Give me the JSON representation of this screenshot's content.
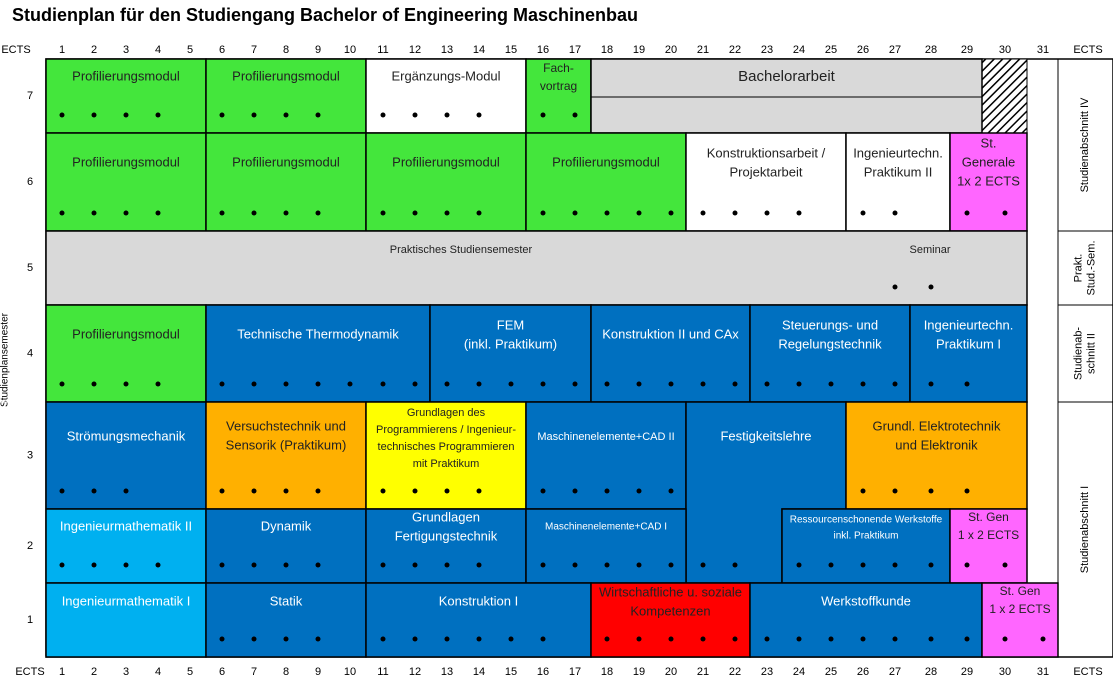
{
  "title": "Studienplan für den Studiengang Bachelor of Engineering Maschinenbau",
  "ects_label": "ECTS",
  "columns": [
    1,
    2,
    3,
    4,
    5,
    6,
    7,
    8,
    9,
    10,
    11,
    12,
    13,
    14,
    15,
    16,
    17,
    18,
    19,
    20,
    21,
    22,
    23,
    24,
    25,
    26,
    27,
    28,
    29,
    30,
    31
  ],
  "row_axis_label": "Studienplansemester",
  "semesters": [
    7,
    6,
    5,
    4,
    3,
    2,
    1
  ],
  "sections": [
    [
      "Studienabschnitt IV"
    ],
    [
      "Prakt.",
      "Stud.-Sem."
    ],
    [
      "Studienab-",
      "schnitt II"
    ],
    [
      "Studienabschnitt I"
    ]
  ],
  "modules": [
    {
      "label": [
        "Profilierungsmodul"
      ]
    },
    {
      "label": [
        "Profilierungsmodul"
      ]
    },
    {
      "label": [
        "Ergänzungs-Modul"
      ]
    },
    {
      "label": [
        "Fach-",
        "vortrag"
      ]
    },
    {
      "label": [
        "Bachelorarbeit"
      ]
    },
    {
      "label": [
        "Profilierungsmodul"
      ]
    },
    {
      "label": [
        "Profilierungsmodul"
      ]
    },
    {
      "label": [
        "Profilierungsmodul"
      ]
    },
    {
      "label": [
        "Profilierungsmodul"
      ]
    },
    {
      "label": [
        "Konstruktionsarbeit /",
        "Projektarbeit"
      ]
    },
    {
      "label": [
        "Ingenieurtechn.",
        "Praktikum II"
      ]
    },
    {
      "label": [
        "St.",
        "Generale",
        "1x 2 ECTS"
      ]
    },
    {
      "label": [
        "Praktisches Studiensemester"
      ]
    },
    {
      "label": [
        "Seminar"
      ]
    },
    {
      "label": [
        "Profilierungsmodul"
      ]
    },
    {
      "label": [
        "Technische Thermodynamik"
      ]
    },
    {
      "label": [
        "FEM",
        "(inkl. Praktikum)"
      ]
    },
    {
      "label": [
        "Konstruktion II und CAx"
      ]
    },
    {
      "label": [
        "Steuerungs- und",
        "Regelungstechnik"
      ]
    },
    {
      "label": [
        "Ingenieurtechn.",
        "Praktikum I"
      ]
    },
    {
      "label": [
        "Strömungsmechanik"
      ]
    },
    {
      "label": [
        "Versuchstechnik und",
        "Sensorik (Praktikum)"
      ]
    },
    {
      "label": [
        "Grundlagen des",
        "Programmierens / Ingenieur-",
        "technisches Programmieren",
        "mit Praktikum"
      ]
    },
    {
      "label": [
        "Maschinenelemente+CAD II"
      ]
    },
    {
      "label": [
        "Festigkeitslehre"
      ]
    },
    {
      "label": [
        "Grundl. Elektrotechnik",
        "und Elektronik"
      ]
    },
    {
      "label": [
        "Ingenieurmathematik II"
      ]
    },
    {
      "label": [
        "Dynamik"
      ]
    },
    {
      "label": [
        "Grundlagen",
        "Fertigungstechnik"
      ]
    },
    {
      "label": [
        "Maschinenelemente+CAD I"
      ]
    },
    {
      "label": [
        "Ressourcenschonende Werkstoffe",
        "inkl. Praktikum"
      ]
    },
    {
      "label": [
        "St. Gen",
        "1 x 2 ECTS"
      ]
    },
    {
      "label": [
        "Ingenieurmathematik I"
      ]
    },
    {
      "label": [
        "Statik"
      ]
    },
    {
      "label": [
        "Konstruktion I"
      ]
    },
    {
      "label": [
        "Wirtschaftliche u. soziale",
        "Kompetenzen"
      ]
    },
    {
      "label": [
        "Werkstoffkunde"
      ]
    },
    {
      "label": [
        "St. Gen",
        "1 x 2 ECTS"
      ]
    }
  ]
}
